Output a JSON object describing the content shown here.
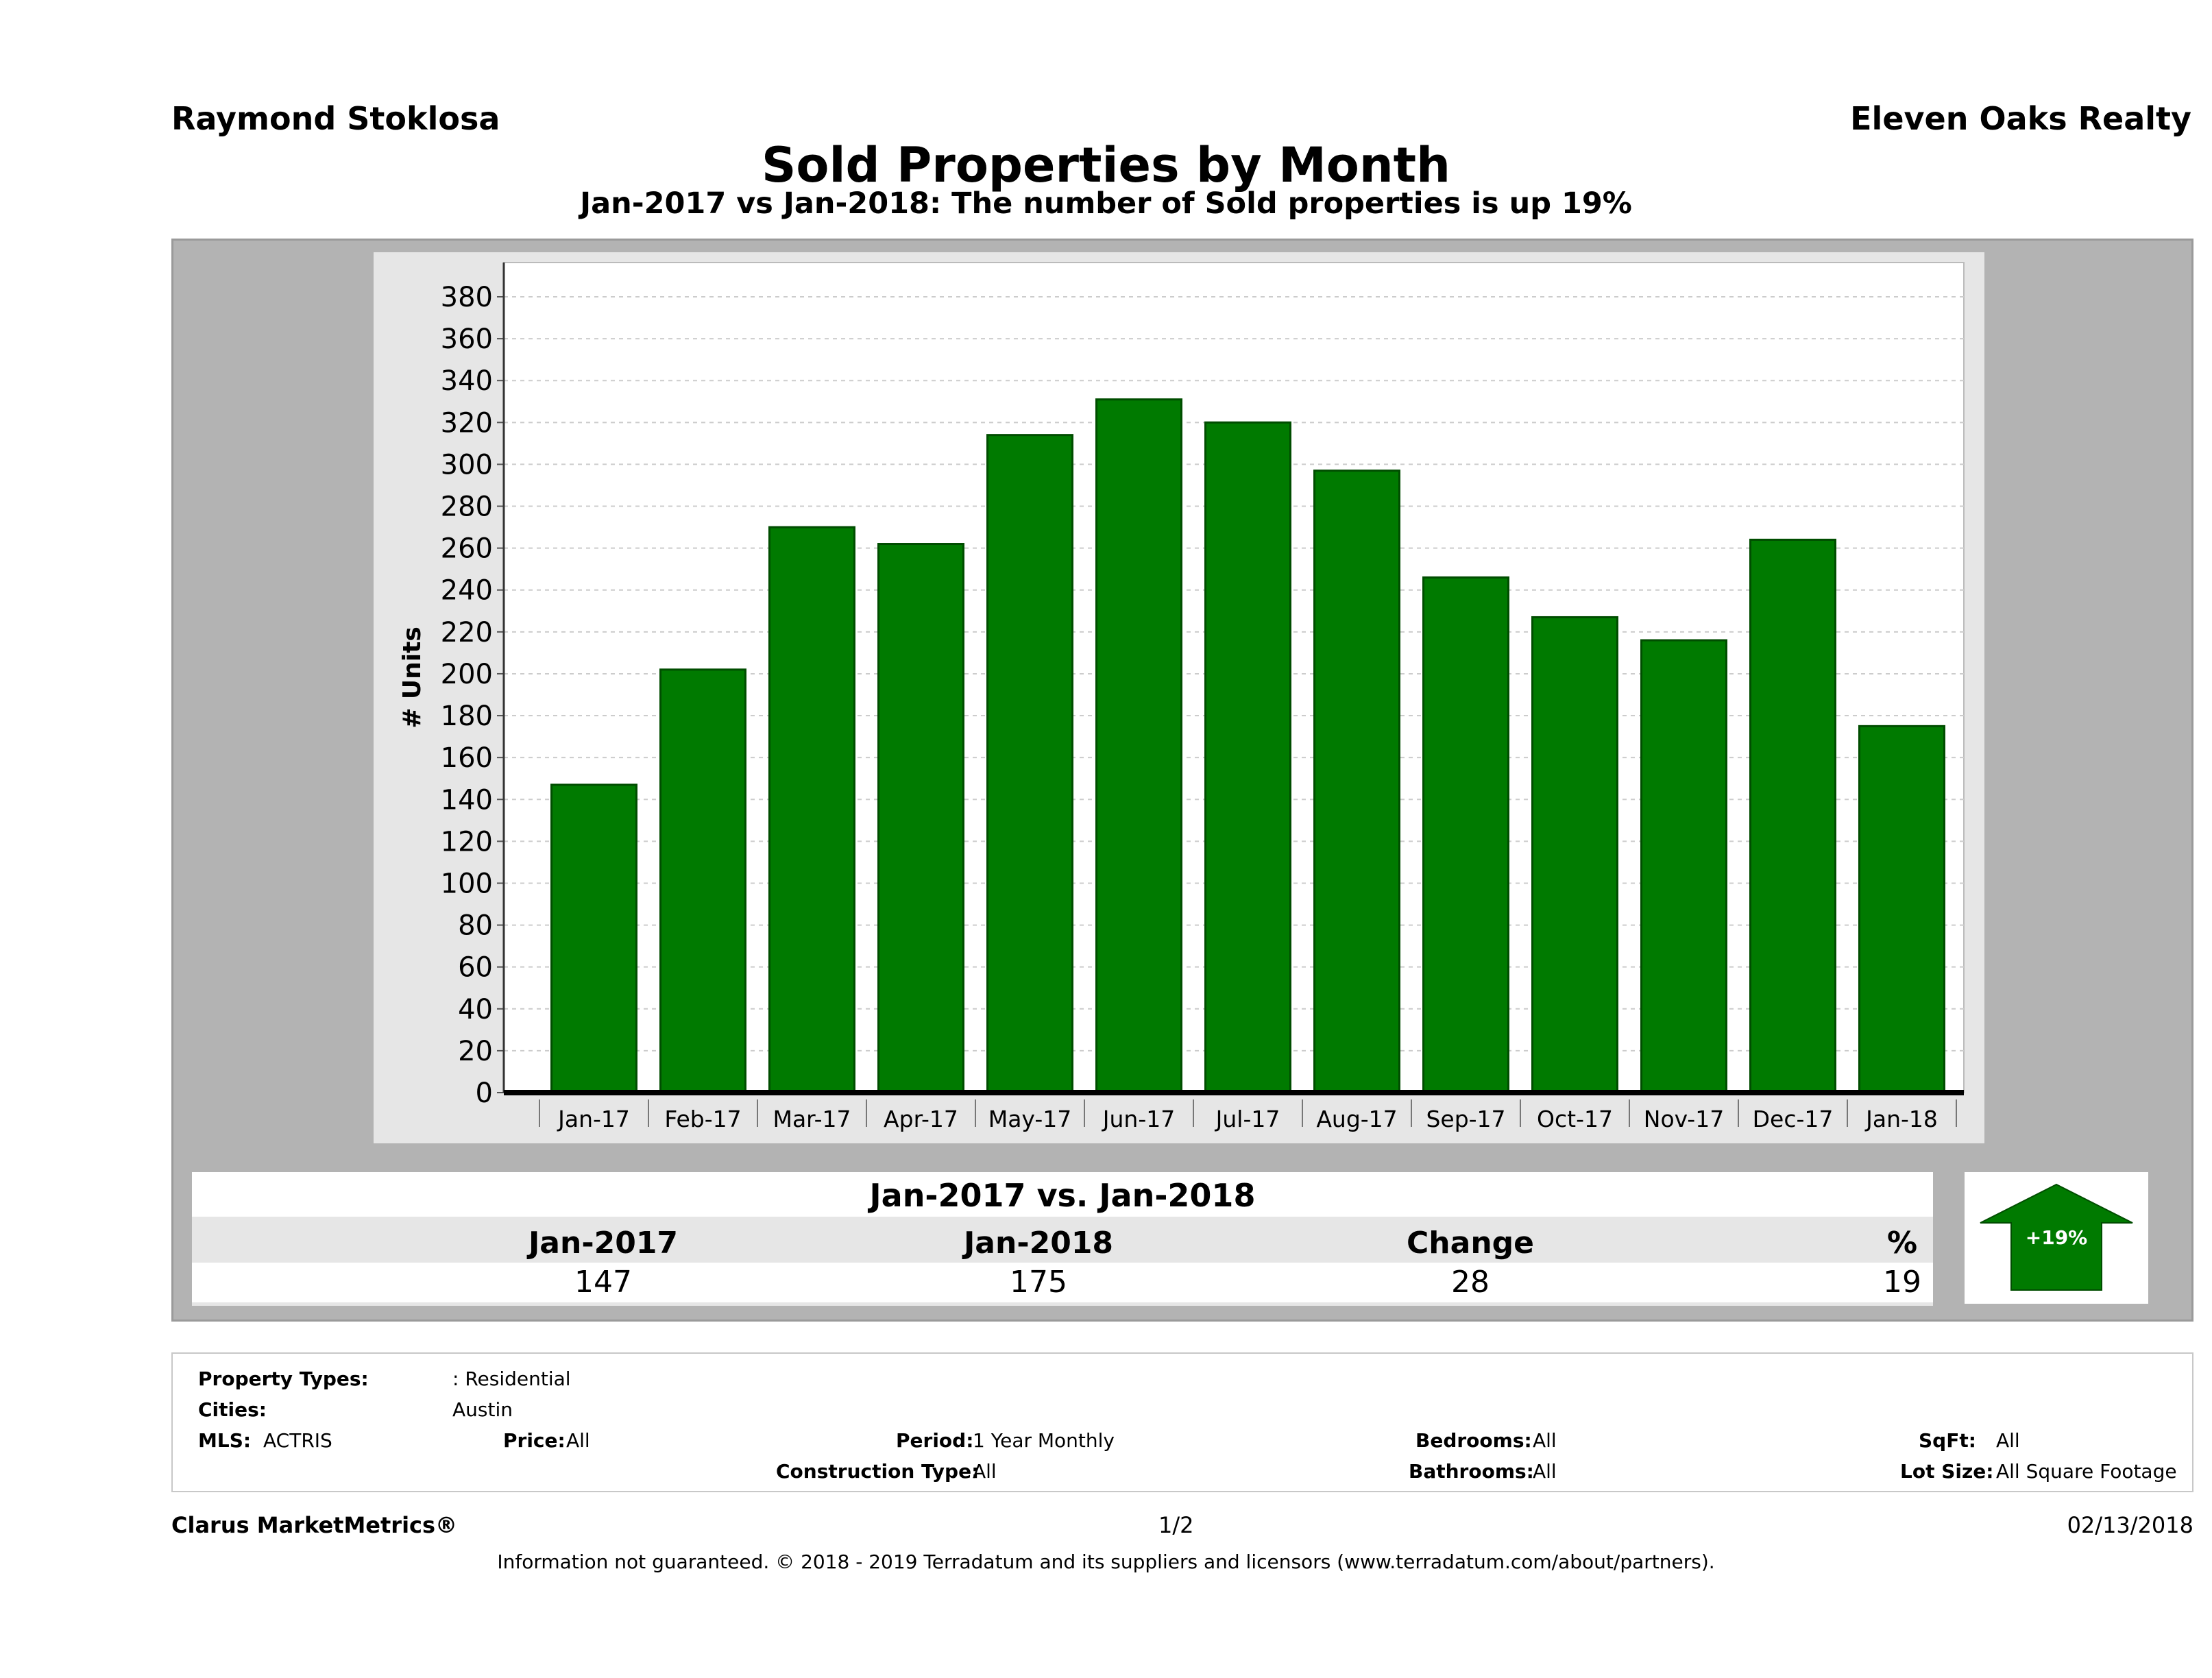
{
  "header": {
    "agent": "Raymond Stoklosa",
    "brokerage": "Eleven Oaks Realty"
  },
  "chart_data": {
    "type": "bar",
    "title": "Sold Properties by Month",
    "subtitle": "Jan-2017 vs Jan-2018: The number of Sold  properties is up 19%",
    "xlabel": "",
    "ylabel": "# Units",
    "ylim": [
      0,
      380
    ],
    "yticks": [
      0,
      20,
      40,
      60,
      80,
      100,
      120,
      140,
      160,
      180,
      200,
      220,
      240,
      260,
      280,
      300,
      320,
      340,
      360,
      380
    ],
    "grid": true,
    "categories": [
      "Jan-17",
      "Feb-17",
      "Mar-17",
      "Apr-17",
      "May-17",
      "Jun-17",
      "Jul-17",
      "Aug-17",
      "Sep-17",
      "Oct-17",
      "Nov-17",
      "Dec-17",
      "Jan-18"
    ],
    "values": [
      147,
      202,
      270,
      262,
      314,
      331,
      320,
      297,
      246,
      227,
      216,
      264,
      175
    ],
    "colors": {
      "bar": "#007a00",
      "bar_edge": "#004d00",
      "plot_bg": "#ffffff",
      "panel_bg": "#e6e6e6"
    }
  },
  "summary": {
    "heading": "Jan-2017 vs. Jan-2018",
    "columns": [
      {
        "label": "Jan-2017",
        "value": "147"
      },
      {
        "label": "Jan-2018",
        "value": "175"
      },
      {
        "label": "Change",
        "value": "28"
      },
      {
        "label": "%",
        "value": "19"
      }
    ],
    "badge": "+19%",
    "badge_color": "#007a00"
  },
  "filters": {
    "property_types_label": "Property Types:",
    "property_types_value": ": Residential",
    "cities_label": "Cities:",
    "cities_value": "Austin",
    "mls_label": "MLS:",
    "mls_value": "ACTRIS",
    "price_label": "Price:",
    "price_value": "All",
    "period_label": "Period:",
    "period_value": "1 Year Monthly",
    "construction_label": "Construction Type:",
    "construction_value": "All",
    "bedrooms_label": "Bedrooms:",
    "bedrooms_value": "All",
    "bathrooms_label": "Bathrooms:",
    "bathrooms_value": "All",
    "sqft_label": "SqFt:",
    "sqft_value": "All",
    "lot_label": "Lot Size:",
    "lot_value": "All Square Footage"
  },
  "footer": {
    "brand": "Clarus MarketMetrics®",
    "page": "1/2",
    "date": "02/13/2018",
    "disclaimer": "Information not guaranteed. © 2018 - 2019 Terradatum and its suppliers and licensors (www.terradatum.com/about/partners)."
  }
}
